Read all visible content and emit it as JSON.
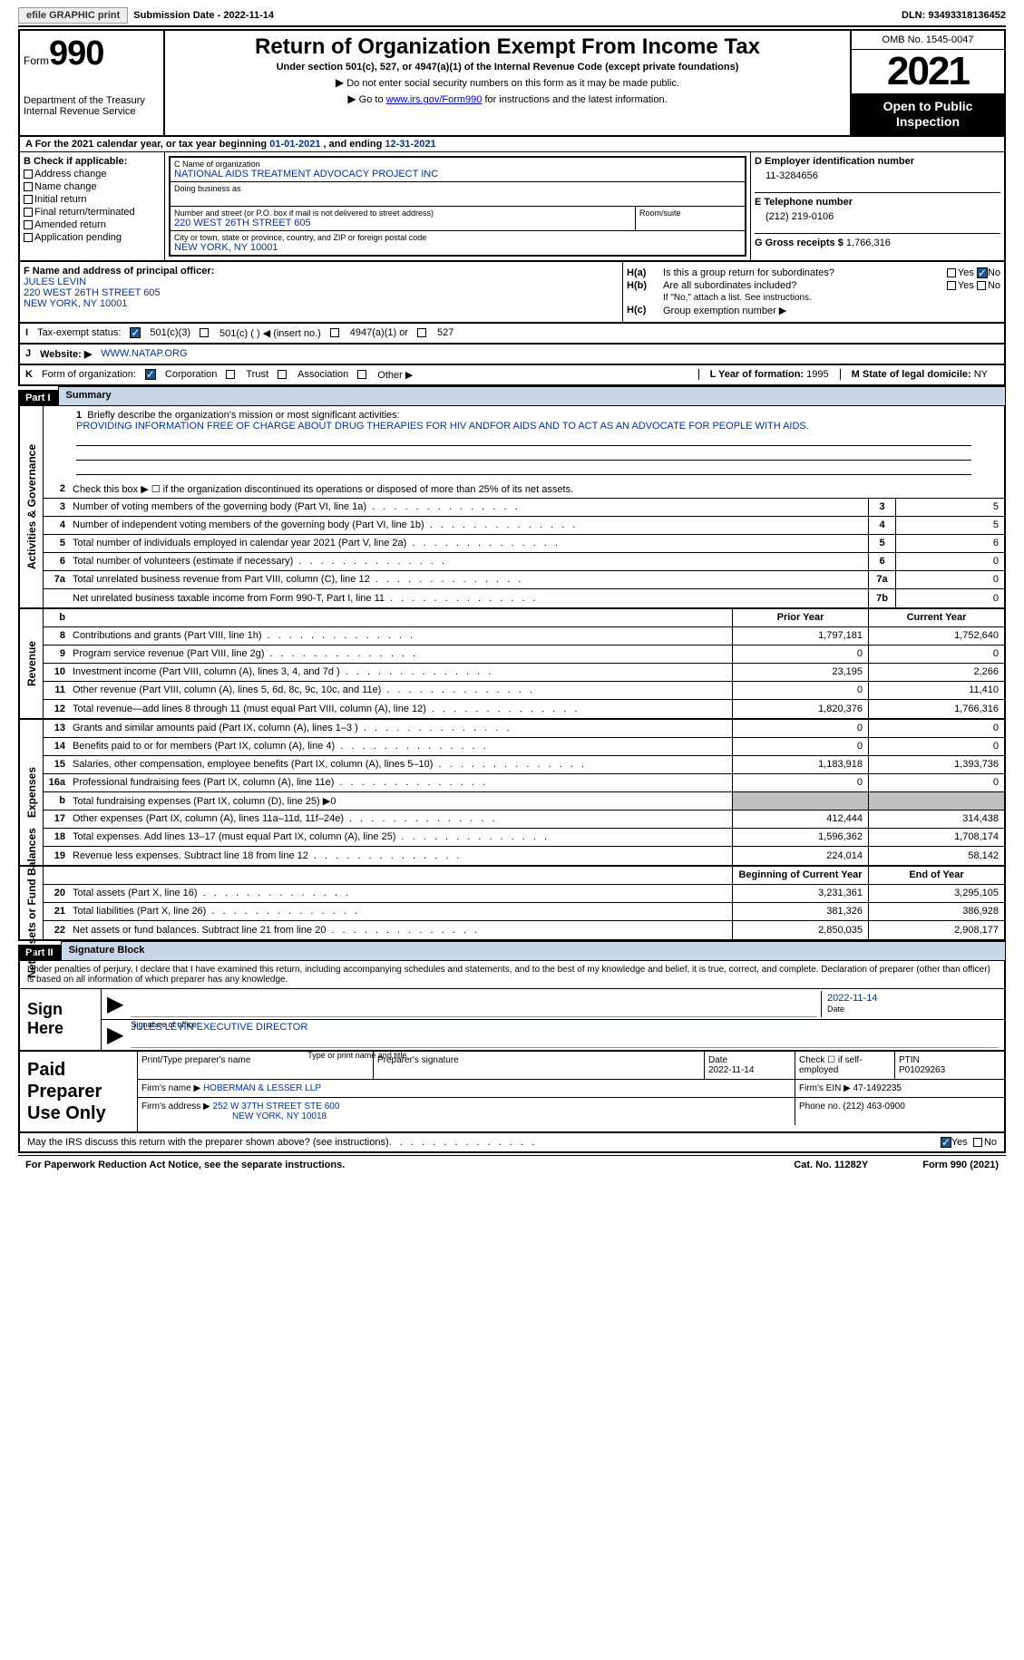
{
  "topbar": {
    "efile": "efile GRAPHIC print",
    "subdate_lbl": "Submission Date - ",
    "subdate": "2022-11-14",
    "dln_lbl": "DLN: ",
    "dln": "93493318136452"
  },
  "header": {
    "form_lbl": "Form",
    "form_num": "990",
    "dept": "Department of the Treasury Internal Revenue Service",
    "title": "Return of Organization Exempt From Income Tax",
    "sub": "Under section 501(c), 527, or 4947(a)(1) of the Internal Revenue Code (except private foundations)",
    "note1": "Do not enter social security numbers on this form as it may be made public.",
    "note2_pre": "Go to ",
    "note2_link": "www.irs.gov/Form990",
    "note2_post": " for instructions and the latest information.",
    "omb": "OMB No. 1545-0047",
    "year": "2021",
    "inspect": "Open to Public Inspection"
  },
  "row_a": {
    "pre": "A For the 2021 calendar year, or tax year beginning ",
    "begin": "01-01-2021",
    "mid": "  , and ending ",
    "end": "12-31-2021"
  },
  "col_b": {
    "title": "B Check if applicable:",
    "items": [
      "Address change",
      "Name change",
      "Initial return",
      "Final return/terminated",
      "Amended return",
      "Application pending"
    ]
  },
  "col_c": {
    "name_lbl": "C Name of organization",
    "name": "NATIONAL AIDS TREATMENT ADVOCACY PROJECT INC",
    "dba_lbl": "Doing business as",
    "addr_lbl": "Number and street (or P.O. box if mail is not delivered to street address)",
    "room_lbl": "Room/suite",
    "addr": "220 WEST 26TH STREET 605",
    "city_lbl": "City or town, state or province, country, and ZIP or foreign postal code",
    "city": "NEW YORK, NY  10001"
  },
  "col_d": {
    "ein_lbl": "D Employer identification number",
    "ein": "11-3284656",
    "tel_lbl": "E Telephone number",
    "tel": "(212) 219-0106",
    "gross_lbl": "G Gross receipts $ ",
    "gross": "1,766,316"
  },
  "block_f": {
    "lbl": "F Name and address of principal officer:",
    "name": "JULES LEVIN",
    "addr1": "220 WEST 26TH STREET 605",
    "addr2": "NEW YORK, NY  10001",
    "ha": "H(a)",
    "ha_txt": "Is this a group return for subordinates?",
    "hb": "H(b)",
    "hb_txt": "Are all subordinates included?",
    "hb_note": "If \"No,\" attach a list. See instructions.",
    "hc": "H(c)",
    "hc_txt": "Group exemption number ▶",
    "yes": "Yes",
    "no": "No"
  },
  "row_i": {
    "lbl": "I",
    "txt": "Tax-exempt status:",
    "o1": "501(c)(3)",
    "o2": "501(c) (  ) ◀ (insert no.)",
    "o3": "4947(a)(1) or",
    "o4": "527"
  },
  "row_j": {
    "lbl": "J",
    "txt": "Website: ▶",
    "val": "WWW.NATAP.ORG"
  },
  "row_k": {
    "lbl": "K",
    "txt": "Form of organization:",
    "o1": "Corporation",
    "o2": "Trust",
    "o3": "Association",
    "o4": "Other ▶",
    "l_lbl": "L Year of formation: ",
    "l_val": "1995",
    "m_lbl": "M State of legal domicile: ",
    "m_val": "NY"
  },
  "part1": {
    "hdr": "Part I",
    "title": "Summary",
    "vlabel1": "Activities & Governance",
    "vlabel2": "Revenue",
    "vlabel3": "Expenses",
    "vlabel4": "Net Assets or Fund Balances",
    "mission_lbl": "Briefly describe the organization's mission or most significant activities:",
    "mission": "PROVIDING INFORMATION FREE OF CHARGE ABOUT DRUG THERAPIES FOR HIV ANDFOR AIDS AND TO ACT AS AN ADVOCATE FOR PEOPLE WITH AIDS.",
    "line2": "Check this box ▶ ☐ if the organization discontinued its operations or disposed of more than 25% of its net assets.",
    "rows_ag": [
      {
        "n": "3",
        "t": "Number of voting members of the governing body (Part VI, line 1a)",
        "b": "3",
        "v": "5"
      },
      {
        "n": "4",
        "t": "Number of independent voting members of the governing body (Part VI, line 1b)",
        "b": "4",
        "v": "5"
      },
      {
        "n": "5",
        "t": "Total number of individuals employed in calendar year 2021 (Part V, line 2a)",
        "b": "5",
        "v": "6"
      },
      {
        "n": "6",
        "t": "Total number of volunteers (estimate if necessary)",
        "b": "6",
        "v": "0"
      },
      {
        "n": "7a",
        "t": "Total unrelated business revenue from Part VIII, column (C), line 12",
        "b": "7a",
        "v": "0"
      },
      {
        "n": "",
        "t": "Net unrelated business taxable income from Form 990-T, Part I, line 11",
        "b": "7b",
        "v": "0"
      }
    ],
    "col_hdrs": {
      "b": "b",
      "py": "Prior Year",
      "cy": "Current Year"
    },
    "rows_rev": [
      {
        "n": "8",
        "t": "Contributions and grants (Part VIII, line 1h)",
        "py": "1,797,181",
        "cy": "1,752,640"
      },
      {
        "n": "9",
        "t": "Program service revenue (Part VIII, line 2g)",
        "py": "0",
        "cy": "0"
      },
      {
        "n": "10",
        "t": "Investment income (Part VIII, column (A), lines 3, 4, and 7d )",
        "py": "23,195",
        "cy": "2,266"
      },
      {
        "n": "11",
        "t": "Other revenue (Part VIII, column (A), lines 5, 6d, 8c, 9c, 10c, and 11e)",
        "py": "0",
        "cy": "11,410"
      },
      {
        "n": "12",
        "t": "Total revenue—add lines 8 through 11 (must equal Part VIII, column (A), line 12)",
        "py": "1,820,376",
        "cy": "1,766,316"
      }
    ],
    "rows_exp": [
      {
        "n": "13",
        "t": "Grants and similar amounts paid (Part IX, column (A), lines 1–3 )",
        "py": "0",
        "cy": "0"
      },
      {
        "n": "14",
        "t": "Benefits paid to or for members (Part IX, column (A), line 4)",
        "py": "0",
        "cy": "0"
      },
      {
        "n": "15",
        "t": "Salaries, other compensation, employee benefits (Part IX, column (A), lines 5–10)",
        "py": "1,183,918",
        "cy": "1,393,736"
      },
      {
        "n": "16a",
        "t": "Professional fundraising fees (Part IX, column (A), line 11e)",
        "py": "0",
        "cy": "0"
      },
      {
        "n": "b",
        "t": "Total fundraising expenses (Part IX, column (D), line 25) ▶0",
        "py": "",
        "cy": "",
        "shade": true
      },
      {
        "n": "17",
        "t": "Other expenses (Part IX, column (A), lines 11a–11d, 11f–24e)",
        "py": "412,444",
        "cy": "314,438"
      },
      {
        "n": "18",
        "t": "Total expenses. Add lines 13–17 (must equal Part IX, column (A), line 25)",
        "py": "1,596,362",
        "cy": "1,708,174"
      },
      {
        "n": "19",
        "t": "Revenue less expenses. Subtract line 18 from line 12",
        "py": "224,014",
        "cy": "58,142"
      }
    ],
    "na_hdrs": {
      "bcy": "Beginning of Current Year",
      "eoy": "End of Year"
    },
    "rows_na": [
      {
        "n": "20",
        "t": "Total assets (Part X, line 16)",
        "py": "3,231,361",
        "cy": "3,295,105"
      },
      {
        "n": "21",
        "t": "Total liabilities (Part X, line 26)",
        "py": "381,326",
        "cy": "386,928"
      },
      {
        "n": "22",
        "t": "Net assets or fund balances. Subtract line 21 from line 20",
        "py": "2,850,035",
        "cy": "2,908,177"
      }
    ]
  },
  "part2": {
    "hdr": "Part II",
    "title": "Signature Block",
    "decl": "Under penalties of perjury, I declare that I have examined this return, including accompanying schedules and statements, and to the best of my knowledge and belief, it is true, correct, and complete. Declaration of preparer (other than officer) is based on all information of which preparer has any knowledge.",
    "sign_here": "Sign Here",
    "sig_lbl": "Signature of officer",
    "sig_date": "2022-11-14",
    "date_lbl": "Date",
    "officer": "JULES LEVIN  EXECUTIVE DIRECTOR",
    "officer_lbl": "Type or print name and title",
    "paid": "Paid Preparer Use Only",
    "prep_name_lbl": "Print/Type preparer's name",
    "prep_sig_lbl": "Preparer's signature",
    "prep_date_lbl": "Date",
    "prep_date": "2022-11-14",
    "prep_chk": "Check ☐ if self-employed",
    "ptin_lbl": "PTIN",
    "ptin": "P01029263",
    "firm_name_lbl": "Firm's name    ▶ ",
    "firm_name": "HOBERMAN & LESSER LLP",
    "firm_ein_lbl": "Firm's EIN ▶ ",
    "firm_ein": "47-1492235",
    "firm_addr_lbl": "Firm's address ▶ ",
    "firm_addr": "252 W 37TH STREET STE 600",
    "firm_city": "NEW YORK, NY  10018",
    "firm_phone_lbl": "Phone no. ",
    "firm_phone": "(212) 463-0900",
    "discuss": "May the IRS discuss this return with the preparer shown above? (see instructions)",
    "yes": "Yes",
    "no": "No"
  },
  "footer": {
    "pra": "For Paperwork Reduction Act Notice, see the separate instructions.",
    "cat": "Cat. No. 11282Y",
    "form": "Form 990 (2021)"
  },
  "colors": {
    "blue": "#003399",
    "headerbg": "#c9d8e7",
    "shade": "#c0c0c0"
  }
}
